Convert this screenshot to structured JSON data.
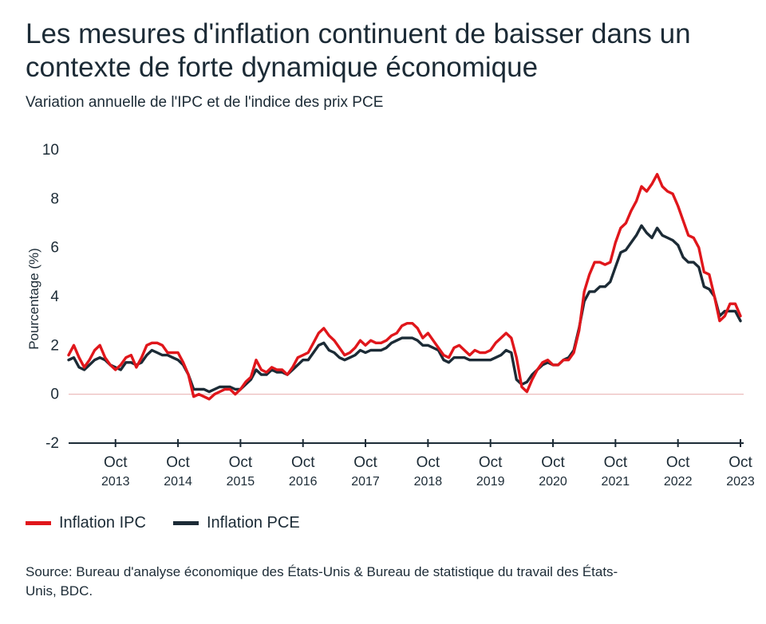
{
  "header": {
    "title": "Les mesures d'inflation continuent de baisser dans un contexte de forte dynamique économique",
    "subtitle": "Variation annuelle de l'IPC et de l'indice des prix PCE"
  },
  "footer": {
    "source": "Source: Bureau d'analyse économique des États-Unis & Bureau de statistique du travail des États-Unis, BDC."
  },
  "colors": {
    "ipc": "#e0161b",
    "pce": "#1c2b36",
    "zero_line": "#e9b4b4",
    "axis": "#1c2b36"
  },
  "chart_data": {
    "type": "line",
    "title": "Les mesures d'inflation continuent de baisser dans un contexte de forte dynamique économique",
    "subtitle": "Variation annuelle de l'IPC et de l'indice des prix PCE",
    "ylabel": "Pourcentage (%)",
    "xlabel": "",
    "ylim": [
      -2,
      10
    ],
    "yticks": [
      -2,
      0,
      2,
      4,
      6,
      8,
      10
    ],
    "x_range": [
      "2013-01",
      "2023-10"
    ],
    "x_ticks": [
      {
        "month": "Oct",
        "year": "2013",
        "date": "2013-10"
      },
      {
        "month": "Oct",
        "year": "2014",
        "date": "2014-10"
      },
      {
        "month": "Oct",
        "year": "2015",
        "date": "2015-10"
      },
      {
        "month": "Oct",
        "year": "2016",
        "date": "2016-10"
      },
      {
        "month": "Oct",
        "year": "2017",
        "date": "2017-10"
      },
      {
        "month": "Oct",
        "year": "2018",
        "date": "2018-10"
      },
      {
        "month": "Oct",
        "year": "2019",
        "date": "2019-10"
      },
      {
        "month": "Oct",
        "year": "2020",
        "date": "2020-10"
      },
      {
        "month": "Oct",
        "year": "2021",
        "date": "2021-10"
      },
      {
        "month": "Oct",
        "year": "2022",
        "date": "2022-10"
      },
      {
        "month": "Oct",
        "year": "2023",
        "date": "2023-10"
      }
    ],
    "grid": false,
    "legend_position": "bottom-left",
    "series": [
      {
        "name": "Inflation IPC",
        "color": "#e0161b",
        "values": [
          [
            1.6,
            2.0,
            1.5,
            1.1,
            1.4,
            1.8,
            2.0,
            1.5,
            1.2,
            1.0,
            1.2,
            1.5,
            1.6,
            1.1,
            1.5,
            2.0,
            2.1,
            2.1,
            2.0,
            1.7,
            1.7,
            1.7,
            1.3,
            0.8,
            -0.1,
            0.0,
            -0.1,
            -0.2,
            0.0,
            0.1,
            0.2,
            0.2,
            0.0,
            0.2,
            0.5,
            0.7,
            1.4,
            1.0,
            0.9,
            1.1,
            1.0,
            1.0,
            0.8,
            1.1,
            1.5,
            1.6,
            1.7,
            2.1,
            2.5,
            2.7,
            2.4,
            2.2,
            1.9,
            1.6,
            1.7,
            1.9,
            2.2,
            2.0,
            2.2,
            2.1,
            2.1,
            2.2,
            2.4,
            2.5,
            2.8,
            2.9,
            2.9,
            2.7,
            2.3,
            2.5,
            2.2,
            1.9,
            1.6,
            1.5,
            1.9,
            2.0,
            1.8,
            1.6,
            1.8,
            1.7,
            1.7,
            1.8,
            2.1,
            2.3,
            2.5,
            2.3,
            1.5,
            0.3,
            0.1,
            0.6,
            1.0,
            1.3,
            1.4,
            1.2,
            1.2,
            1.4,
            1.4,
            1.7,
            2.6,
            4.2,
            4.9,
            5.4,
            5.4,
            5.3,
            5.4,
            6.2,
            6.8,
            7.0,
            7.5,
            7.9,
            8.5,
            8.3,
            8.6,
            9.0,
            8.5,
            8.3,
            8.2,
            7.7,
            7.1,
            6.5,
            6.4,
            6.0,
            5.0,
            4.9,
            4.0,
            3.0,
            3.2,
            3.7,
            3.7,
            3.2
          ]
        ]
      },
      {
        "name": "Inflation PCE",
        "color": "#1c2b36",
        "values": [
          [
            1.4,
            1.5,
            1.1,
            1.0,
            1.2,
            1.4,
            1.5,
            1.4,
            1.2,
            1.1,
            1.0,
            1.3,
            1.3,
            1.2,
            1.3,
            1.6,
            1.8,
            1.7,
            1.6,
            1.6,
            1.5,
            1.4,
            1.2,
            0.8,
            0.2,
            0.2,
            0.2,
            0.1,
            0.2,
            0.3,
            0.3,
            0.3,
            0.2,
            0.2,
            0.4,
            0.6,
            1.0,
            0.8,
            0.8,
            1.0,
            0.9,
            0.9,
            0.8,
            1.0,
            1.2,
            1.4,
            1.4,
            1.7,
            2.0,
            2.1,
            1.8,
            1.7,
            1.5,
            1.4,
            1.5,
            1.6,
            1.8,
            1.7,
            1.8,
            1.8,
            1.8,
            1.9,
            2.1,
            2.2,
            2.3,
            2.3,
            2.3,
            2.2,
            2.0,
            2.0,
            1.9,
            1.8,
            1.4,
            1.3,
            1.5,
            1.5,
            1.5,
            1.4,
            1.4,
            1.4,
            1.4,
            1.4,
            1.5,
            1.6,
            1.8,
            1.7,
            0.6,
            0.4,
            0.5,
            0.8,
            1.0,
            1.2,
            1.3,
            1.2,
            1.2,
            1.4,
            1.5,
            1.8,
            2.7,
            3.8,
            4.2,
            4.2,
            4.4,
            4.4,
            4.6,
            5.2,
            5.8,
            5.9,
            6.2,
            6.5,
            6.9,
            6.6,
            6.4,
            6.8,
            6.5,
            6.4,
            6.3,
            6.1,
            5.6,
            5.4,
            5.4,
            5.2,
            4.4,
            4.3,
            4.0,
            3.2,
            3.4,
            3.4,
            3.4,
            3.0
          ]
        ]
      }
    ]
  },
  "legend": {
    "items": [
      {
        "label": "Inflation IPC",
        "color": "#e0161b"
      },
      {
        "label": "Inflation PCE",
        "color": "#1c2b36"
      }
    ]
  }
}
